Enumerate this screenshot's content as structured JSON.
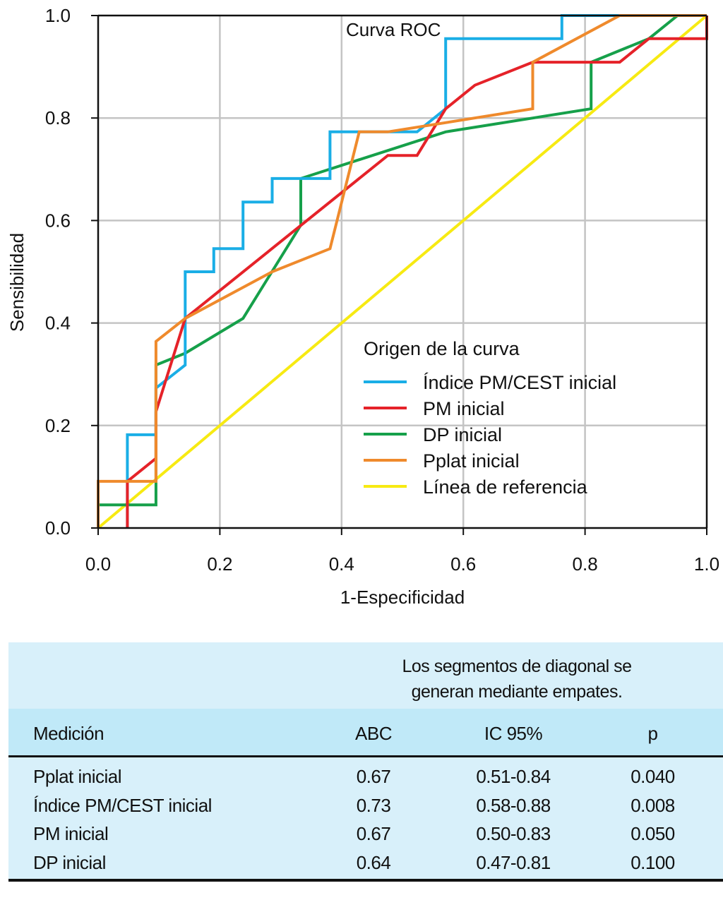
{
  "chart_data": {
    "type": "line",
    "title": "Curva ROC",
    "xlabel": "1-Especificidad",
    "ylabel": "Sensibilidad",
    "xlim": [
      0,
      1
    ],
    "ylim": [
      0,
      1
    ],
    "xticks": [
      "0.0",
      "0.2",
      "0.4",
      "0.6",
      "0.8",
      "1.0"
    ],
    "yticks": [
      "0.0",
      "0.2",
      "0.4",
      "0.6",
      "0.8",
      "1.0"
    ],
    "grid": true,
    "legend": {
      "title": "Origen de la curva",
      "placement": "center-right"
    },
    "series": [
      {
        "name": "Índice PM/CEST inicial",
        "color": "#1aaee6",
        "points": [
          [
            0.048,
            0
          ],
          [
            0.048,
            0.091
          ],
          [
            0.048,
            0.182
          ],
          [
            0.095,
            0.182
          ],
          [
            0.095,
            0.273
          ],
          [
            0.143,
            0.318
          ],
          [
            0.143,
            0.5
          ],
          [
            0.19,
            0.5
          ],
          [
            0.19,
            0.545
          ],
          [
            0.238,
            0.545
          ],
          [
            0.238,
            0.636
          ],
          [
            0.286,
            0.636
          ],
          [
            0.286,
            0.682
          ],
          [
            0.381,
            0.682
          ],
          [
            0.381,
            0.773
          ],
          [
            0.524,
            0.773
          ],
          [
            0.571,
            0.818
          ],
          [
            0.571,
            0.955
          ],
          [
            0.762,
            0.955
          ],
          [
            0.762,
            1.0
          ],
          [
            1.0,
            1.0
          ]
        ]
      },
      {
        "name": "PM inicial",
        "color": "#e52229",
        "points": [
          [
            0.048,
            0
          ],
          [
            0.048,
            0.091
          ],
          [
            0.095,
            0.136
          ],
          [
            0.095,
            0.227
          ],
          [
            0.143,
            0.409
          ],
          [
            0.476,
            0.727
          ],
          [
            0.524,
            0.727
          ],
          [
            0.571,
            0.818
          ],
          [
            0.619,
            0.864
          ],
          [
            0.714,
            0.909
          ],
          [
            0.857,
            0.909
          ],
          [
            0.905,
            0.955
          ],
          [
            1.0,
            0.955
          ],
          [
            1.0,
            1.0
          ]
        ]
      },
      {
        "name": "DP inicial",
        "color": "#16a04a",
        "points": [
          [
            0,
            0
          ],
          [
            0,
            0.045
          ],
          [
            0.095,
            0.045
          ],
          [
            0.095,
            0.318
          ],
          [
            0.143,
            0.341
          ],
          [
            0.238,
            0.409
          ],
          [
            0.333,
            0.591
          ],
          [
            0.333,
            0.682
          ],
          [
            0.571,
            0.773
          ],
          [
            0.81,
            0.818
          ],
          [
            0.81,
            0.909
          ],
          [
            0.905,
            0.955
          ],
          [
            0.952,
            1.0
          ],
          [
            1.0,
            1.0
          ]
        ]
      },
      {
        "name": "Pplat inicial",
        "color": "#ef8a2c",
        "points": [
          [
            0,
            0
          ],
          [
            0,
            0.091
          ],
          [
            0.095,
            0.091
          ],
          [
            0.095,
            0.364
          ],
          [
            0.143,
            0.409
          ],
          [
            0.286,
            0.5
          ],
          [
            0.381,
            0.545
          ],
          [
            0.429,
            0.773
          ],
          [
            0.476,
            0.773
          ],
          [
            0.714,
            0.818
          ],
          [
            0.714,
            0.909
          ],
          [
            0.857,
            1.0
          ],
          [
            1.0,
            1.0
          ]
        ]
      },
      {
        "name": "Línea de referencia",
        "color": "#f7ea12",
        "points": [
          [
            0,
            0
          ],
          [
            1,
            1
          ]
        ]
      }
    ]
  },
  "table": {
    "note_line1": "Los segmentos de diagonal se",
    "note_line2": "generan mediante empates.",
    "headers": [
      "Medición",
      "ABC",
      "IC 95%",
      "p"
    ],
    "rows": [
      [
        "Pplat inicial",
        "0.67",
        "0.51-0.84",
        "0.040"
      ],
      [
        "Índice PM/CEST inicial",
        "0.73",
        "0.58-0.88",
        "0.008"
      ],
      [
        "PM inicial",
        "0.67",
        "0.50-0.83",
        "0.050"
      ],
      [
        "DP inicial",
        "0.64",
        "0.47-0.81",
        "0.100"
      ]
    ]
  }
}
